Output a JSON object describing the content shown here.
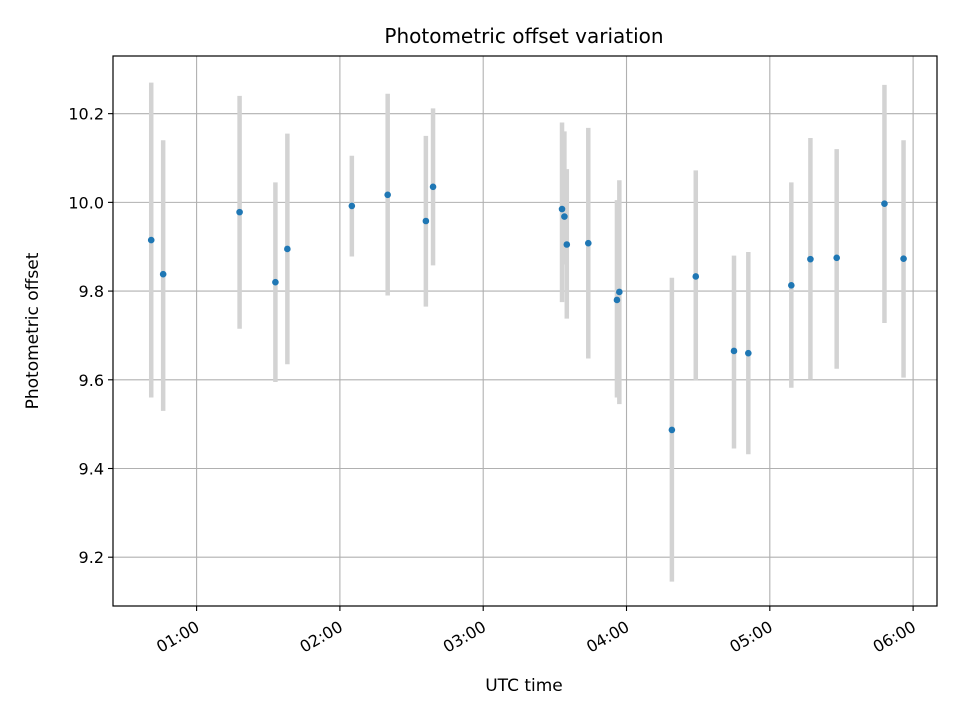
{
  "chart_data": {
    "type": "scatter",
    "title": "Photometric offset variation",
    "xlabel": "UTC time",
    "ylabel": "Photometric offset",
    "x_axis_type": "time",
    "xlim": [
      "00:25",
      "06:10"
    ],
    "ylim": [
      9.09,
      10.33
    ],
    "xticks": [
      "01:00",
      "02:00",
      "03:00",
      "04:00",
      "05:00",
      "06:00"
    ],
    "yticks": [
      9.2,
      9.4,
      9.6,
      9.8,
      10.0,
      10.2
    ],
    "ytick_labels": [
      "9.2",
      "9.4",
      "9.6",
      "9.8",
      "10.0",
      "10.2"
    ],
    "grid": true,
    "point_color": "#1f77b4",
    "errorbar_color": "#d3d3d3",
    "points": [
      {
        "x": "00:41",
        "y": 9.915,
        "ylow": 9.56,
        "yhigh": 10.27
      },
      {
        "x": "00:46",
        "y": 9.838,
        "ylow": 9.53,
        "yhigh": 10.14
      },
      {
        "x": "01:18",
        "y": 9.978,
        "ylow": 9.715,
        "yhigh": 10.24
      },
      {
        "x": "01:33",
        "y": 9.82,
        "ylow": 9.595,
        "yhigh": 10.045
      },
      {
        "x": "01:38",
        "y": 9.895,
        "ylow": 9.635,
        "yhigh": 10.155
      },
      {
        "x": "02:05",
        "y": 9.992,
        "ylow": 9.878,
        "yhigh": 10.105
      },
      {
        "x": "02:20",
        "y": 10.017,
        "ylow": 9.79,
        "yhigh": 10.245
      },
      {
        "x": "02:36",
        "y": 9.958,
        "ylow": 9.765,
        "yhigh": 10.15
      },
      {
        "x": "02:39",
        "y": 10.035,
        "ylow": 9.858,
        "yhigh": 10.212
      },
      {
        "x": "03:33",
        "y": 9.985,
        "ylow": 9.775,
        "yhigh": 10.18
      },
      {
        "x": "03:34",
        "y": 9.968,
        "ylow": 9.86,
        "yhigh": 10.16
      },
      {
        "x": "03:35",
        "y": 9.905,
        "ylow": 9.738,
        "yhigh": 10.075
      },
      {
        "x": "03:44",
        "y": 9.908,
        "ylow": 9.648,
        "yhigh": 10.168
      },
      {
        "x": "03:56",
        "y": 9.78,
        "ylow": 9.56,
        "yhigh": 10.005
      },
      {
        "x": "03:57",
        "y": 9.798,
        "ylow": 9.545,
        "yhigh": 10.05
      },
      {
        "x": "04:19",
        "y": 9.487,
        "ylow": 9.145,
        "yhigh": 9.83
      },
      {
        "x": "04:29",
        "y": 9.833,
        "ylow": 9.598,
        "yhigh": 10.072
      },
      {
        "x": "04:45",
        "y": 9.665,
        "ylow": 9.445,
        "yhigh": 9.88
      },
      {
        "x": "04:51",
        "y": 9.66,
        "ylow": 9.432,
        "yhigh": 9.888
      },
      {
        "x": "05:09",
        "y": 9.813,
        "ylow": 9.582,
        "yhigh": 10.045
      },
      {
        "x": "05:17",
        "y": 9.872,
        "ylow": 9.6,
        "yhigh": 10.145
      },
      {
        "x": "05:28",
        "y": 9.875,
        "ylow": 9.625,
        "yhigh": 10.12
      },
      {
        "x": "05:48",
        "y": 9.997,
        "ylow": 9.728,
        "yhigh": 10.265
      },
      {
        "x": "05:56",
        "y": 9.873,
        "ylow": 9.605,
        "yhigh": 10.14
      }
    ]
  }
}
